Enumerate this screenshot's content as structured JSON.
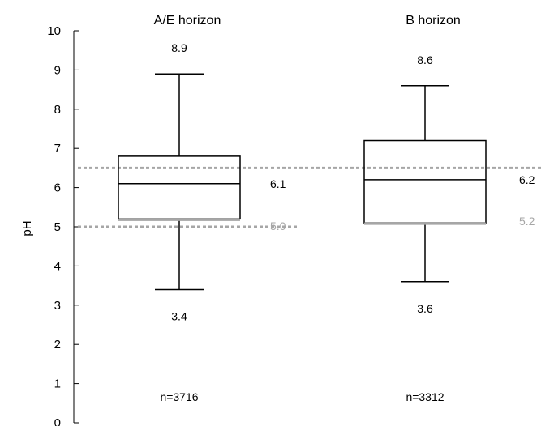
{
  "chart_data": {
    "type": "boxplot",
    "ylabel": "pH",
    "ylim": [
      0,
      10
    ],
    "yticks": [
      0,
      1,
      2,
      3,
      4,
      5,
      6,
      7,
      8,
      9,
      10
    ],
    "grid": false,
    "boxes": [
      {
        "title": "A/E horizon",
        "whisker_low": 3.4,
        "q1": 5.2,
        "median": 6.1,
        "q3": 6.8,
        "whisker_high": 8.9,
        "n_label": "n=3716",
        "low_label": "3.4",
        "high_label": "8.9",
        "median_label": "6.1",
        "reference_label": "5.0"
      },
      {
        "title": "B horizon",
        "whisker_low": 3.6,
        "q1": 5.1,
        "median": 6.2,
        "q3": 7.2,
        "whisker_high": 8.6,
        "n_label": "n=3312",
        "low_label": "3.6",
        "high_label": "8.6",
        "median_label": "6.2",
        "reference_label": "5.2"
      }
    ],
    "reference_lines": [
      {
        "value": 6.5,
        "style": "dotted",
        "color": "#a6a6a6",
        "span": "full"
      },
      {
        "value": 5.0,
        "style": "dotted",
        "color": "#a6a6a6",
        "span": "first"
      }
    ],
    "colors": {
      "box": "#000000",
      "reference": "#a6a6a6",
      "background": "#ffffff"
    }
  }
}
